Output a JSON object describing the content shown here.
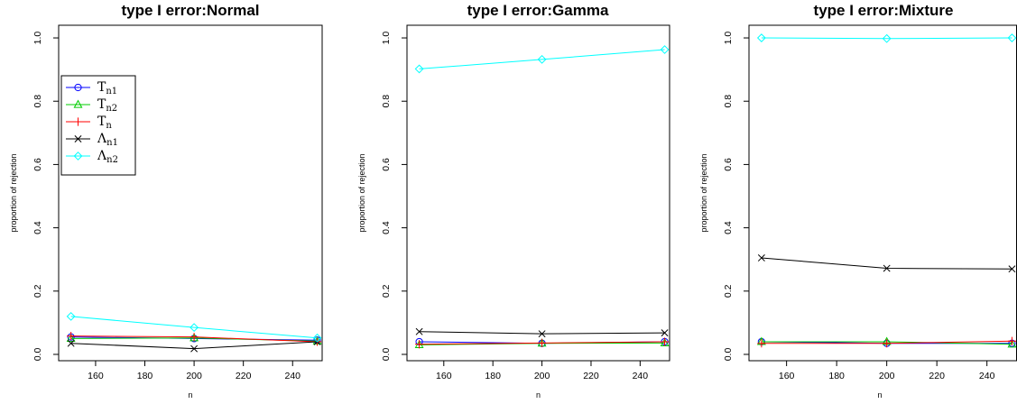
{
  "chart_data": [
    {
      "type": "line",
      "title": "type I error:Normal",
      "xlabel": "n",
      "ylabel": "proportion of rejection",
      "x": [
        150,
        200,
        250
      ],
      "xticks": [
        160,
        180,
        200,
        220,
        240
      ],
      "yticks": [
        "0.0",
        "0.2",
        "0.4",
        "0.6",
        "0.8",
        "1.0"
      ],
      "xlim": [
        145,
        252
      ],
      "ylim": [
        -0.02,
        1.04
      ],
      "legend": {
        "placement": "top-left",
        "show": true
      },
      "series": [
        {
          "name": "T_n1",
          "color": "#0000ff",
          "marker": "circle",
          "values": [
            0.055,
            0.05,
            0.045
          ]
        },
        {
          "name": "T_n2",
          "color": "#00cd00",
          "marker": "triangle",
          "values": [
            0.05,
            0.052,
            0.042
          ]
        },
        {
          "name": "T_n",
          "color": "#ff0000",
          "marker": "plus",
          "values": [
            0.058,
            0.055,
            0.04
          ]
        },
        {
          "name": "Λ_n1",
          "color": "#000000",
          "marker": "x",
          "values": [
            0.035,
            0.018,
            0.04
          ]
        },
        {
          "name": "Λ_n2",
          "color": "#00ffff",
          "marker": "diamond",
          "values": [
            0.12,
            0.085,
            0.052
          ]
        }
      ]
    },
    {
      "type": "line",
      "title": "type I error:Gamma",
      "xlabel": "n",
      "ylabel": "proportion of rejection",
      "x": [
        150,
        200,
        250
      ],
      "xticks": [
        160,
        180,
        200,
        220,
        240
      ],
      "yticks": [
        "0.0",
        "0.2",
        "0.4",
        "0.6",
        "0.8",
        "1.0"
      ],
      "xlim": [
        145,
        252
      ],
      "ylim": [
        -0.02,
        1.04
      ],
      "legend": {
        "show": false
      },
      "series": [
        {
          "name": "T_n1",
          "color": "#0000ff",
          "marker": "circle",
          "values": [
            0.04,
            0.035,
            0.04
          ]
        },
        {
          "name": "T_n2",
          "color": "#00cd00",
          "marker": "triangle",
          "values": [
            0.03,
            0.035,
            0.036
          ]
        },
        {
          "name": "T_n",
          "color": "#ff0000",
          "marker": "plus",
          "values": [
            0.032,
            0.036,
            0.04
          ]
        },
        {
          "name": "Λ_n1",
          "color": "#000000",
          "marker": "x",
          "values": [
            0.072,
            0.065,
            0.068
          ]
        },
        {
          "name": "Λ_n2",
          "color": "#00ffff",
          "marker": "diamond",
          "values": [
            0.902,
            0.932,
            0.963
          ]
        }
      ]
    },
    {
      "type": "line",
      "title": "type I error:Mixture",
      "xlabel": "n",
      "ylabel": "proportion of rejection",
      "x": [
        150,
        200,
        250
      ],
      "xticks": [
        160,
        180,
        200,
        220,
        240
      ],
      "yticks": [
        "0.0",
        "0.2",
        "0.4",
        "0.6",
        "0.8",
        "1.0"
      ],
      "xlim": [
        145,
        252
      ],
      "ylim": [
        -0.02,
        1.04
      ],
      "legend": {
        "show": false
      },
      "series": [
        {
          "name": "T_n1",
          "color": "#0000ff",
          "marker": "circle",
          "values": [
            0.04,
            0.035,
            0.035
          ]
        },
        {
          "name": "T_n2",
          "color": "#00cd00",
          "marker": "triangle",
          "values": [
            0.04,
            0.04,
            0.032
          ]
        },
        {
          "name": "T_n",
          "color": "#ff0000",
          "marker": "plus",
          "values": [
            0.035,
            0.035,
            0.042
          ]
        },
        {
          "name": "Λ_n1",
          "color": "#000000",
          "marker": "x",
          "values": [
            0.305,
            0.272,
            0.27
          ]
        },
        {
          "name": "Λ_n2",
          "color": "#00ffff",
          "marker": "diamond",
          "values": [
            1.0,
            0.998,
            1.0
          ]
        }
      ]
    }
  ]
}
